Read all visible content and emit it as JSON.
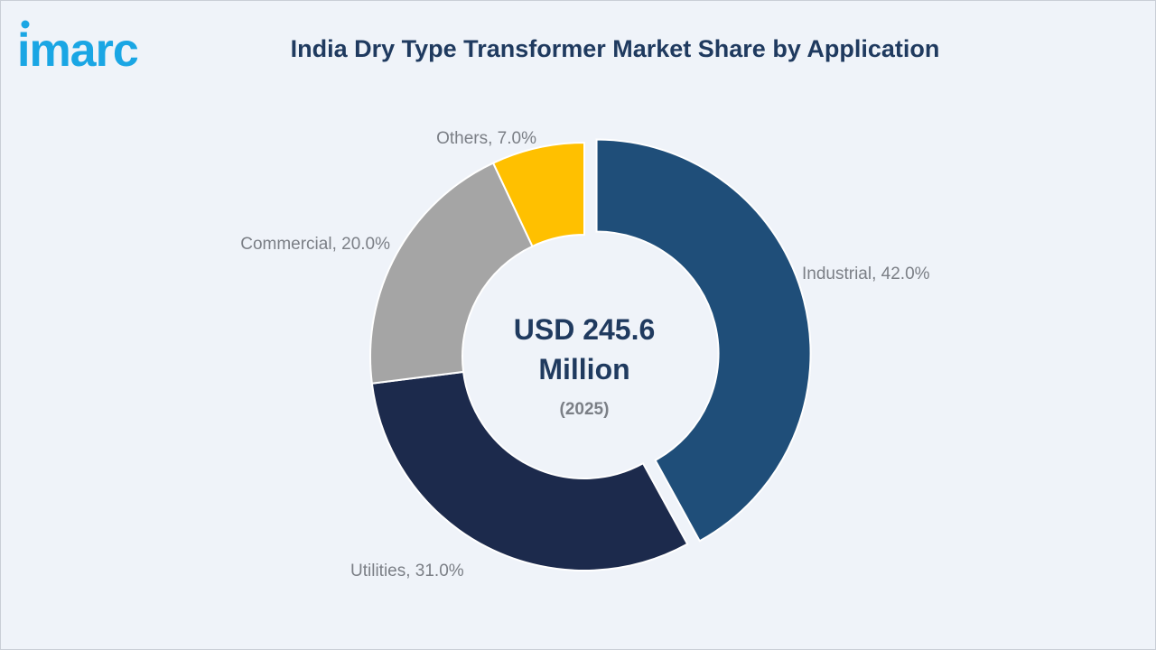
{
  "brand": {
    "logo_text": "imarc",
    "logo_color": "#1aa6e4"
  },
  "chart_data": {
    "type": "pie",
    "title": "India Dry Type Transformer Market Share by Application",
    "center_value": "USD 245.6 Million",
    "center_value_lines": [
      "USD 245.6",
      "Million"
    ],
    "center_sub": "(2025)",
    "slices": [
      {
        "label": "Industrial",
        "value": 42.0,
        "text": "Industrial, 42.0%",
        "color": "#1f4e79",
        "exploded": true
      },
      {
        "label": "Utilities",
        "value": 31.0,
        "text": "Utilities, 31.0%",
        "color": "#1c2a4c",
        "exploded": false
      },
      {
        "label": "Commercial",
        "value": 20.0,
        "text": "Commercial, 20.0%",
        "color": "#a5a5a5",
        "exploded": false
      },
      {
        "label": "Others",
        "value": 7.0,
        "text": "Others, 7.0%",
        "color": "#ffc000",
        "exploded": false
      }
    ],
    "donut": true
  },
  "colors": {
    "background": "#eff3f9",
    "title": "#1f3a5f",
    "label": "#7b7f86"
  }
}
